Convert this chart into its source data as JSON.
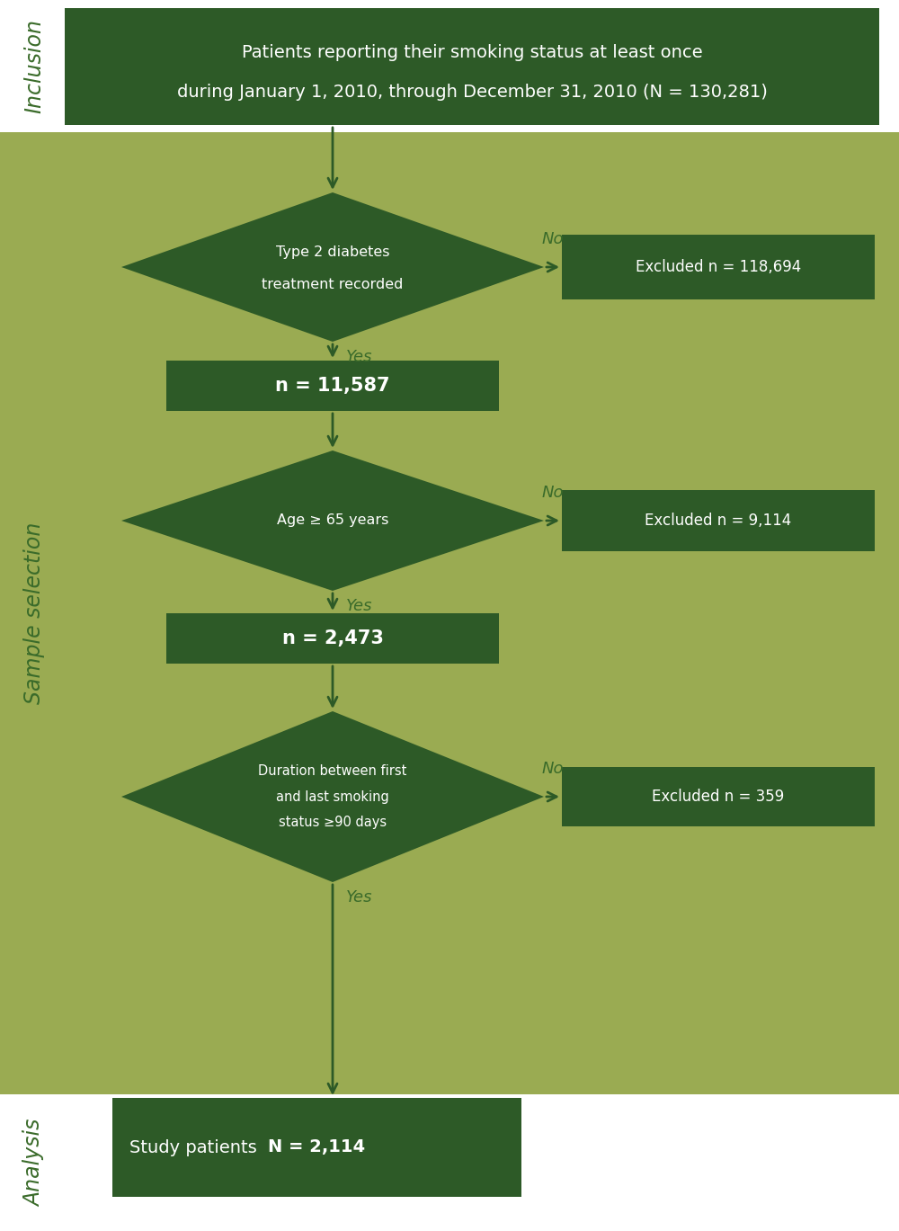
{
  "bg_green_light": "#9aab52",
  "bg_dark_green": "#2d5a27",
  "text_white": "#ffffff",
  "arrow_color": "#2d5a27",
  "label_color": "#3a6b2a",
  "inclusion_box": {
    "text_line1": "Patients reporting their smoking status at least once",
    "text_line2": "during January 1, 2010, through December 31, 2010 (N = 130,281)"
  },
  "diamond1": {
    "text_line1": "Type 2 diabetes",
    "text_line2": "treatment recorded"
  },
  "exclude1": "Excluded n = 118,694",
  "rect1": "n = 11,587",
  "diamond2": {
    "text": "Age ≥ 65 years"
  },
  "exclude2": "Excluded n = 9,114",
  "rect2": "n = 2,473",
  "diamond3": {
    "text_line1": "Duration between first",
    "text_line2": "and last smoking",
    "text_line3": "status ≥90 days"
  },
  "exclude3": "Excluded n = 359",
  "final_text_normal": "Study patients  ",
  "final_text_bold": "N = 2,114"
}
